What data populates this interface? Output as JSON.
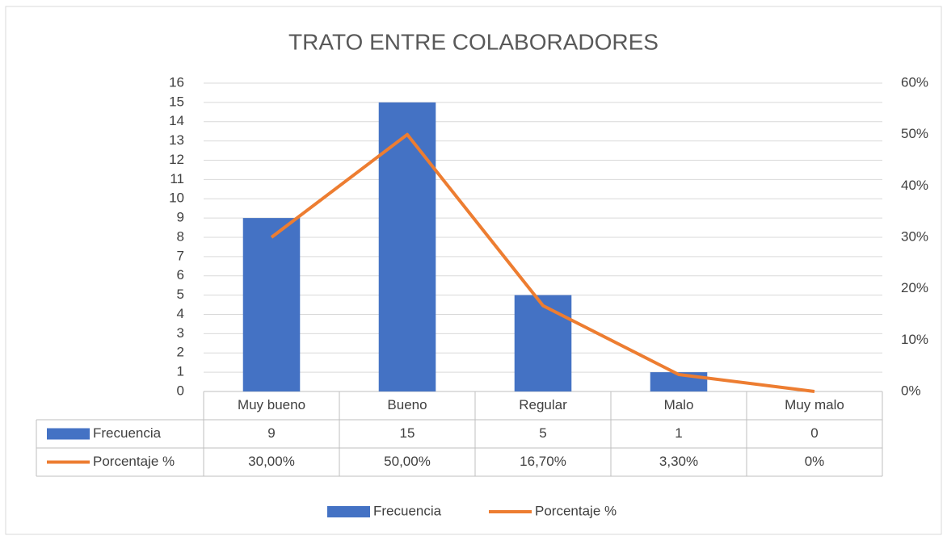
{
  "chart_data": {
    "type": "bar_line",
    "title": "TRATO ENTRE COLABORADORES",
    "categories": [
      "Muy bueno",
      "Bueno",
      "Regular",
      "Malo",
      "Muy malo"
    ],
    "series": [
      {
        "name": "Frecuencia",
        "type": "bar",
        "color": "#4472c4",
        "values": [
          9,
          15,
          5,
          1,
          0
        ]
      },
      {
        "name": "Porcentaje %",
        "type": "line",
        "axis": "y2",
        "color": "#ed7d31",
        "values": [
          30,
          50,
          16.7,
          3.3,
          0
        ],
        "value_labels": [
          "30,00%",
          "50,00%",
          "16,70%",
          "3,30%",
          "0%"
        ]
      }
    ],
    "ylim": [
      0,
      16
    ],
    "yticks": [
      0,
      1,
      2,
      3,
      4,
      5,
      6,
      7,
      8,
      9,
      10,
      11,
      12,
      13,
      14,
      15,
      16
    ],
    "y2lim": [
      0,
      60
    ],
    "y2ticks": [
      {
        "value": 0,
        "label": "0%"
      },
      {
        "value": 10,
        "label": "10%"
      },
      {
        "value": 20,
        "label": "20%"
      },
      {
        "value": 30,
        "label": "30%"
      },
      {
        "value": 40,
        "label": "40%"
      },
      {
        "value": 50,
        "label": "50%"
      },
      {
        "value": 60,
        "label": "60%"
      }
    ],
    "grid": true,
    "legend": "bottom"
  }
}
